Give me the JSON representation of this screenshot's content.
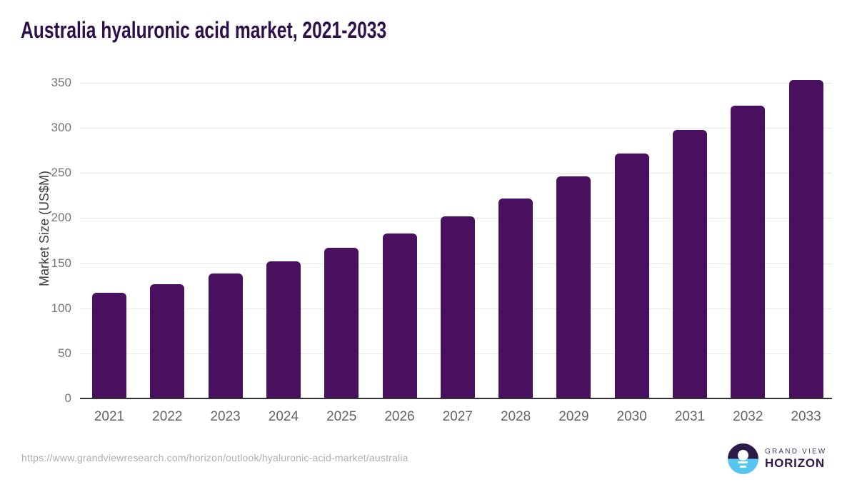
{
  "title": "Australia hyaluronic acid market, 2021-2033",
  "chart_data": {
    "type": "bar",
    "title": "Australia hyaluronic acid market, 2021-2033",
    "categories": [
      "2021",
      "2022",
      "2023",
      "2024",
      "2025",
      "2026",
      "2027",
      "2028",
      "2029",
      "2030",
      "2031",
      "2032",
      "2033"
    ],
    "values": [
      117,
      127,
      139,
      152,
      167,
      183,
      202,
      222,
      246,
      272,
      298,
      325,
      353
    ],
    "xlabel": "",
    "ylabel": "Market Size (US$M)",
    "ylim": [
      0,
      350
    ],
    "yticks": [
      0,
      50,
      100,
      150,
      200,
      250,
      300,
      350
    ],
    "grid": "horizontal",
    "legend": "none",
    "bar_color": "#48105e"
  },
  "colors": {
    "bar": "#48105e",
    "title": "#2d0f4b",
    "axis_line": "#333333",
    "gridline": "#e8e8e8",
    "y_tick_label": "#757575",
    "x_tick_label": "#646464",
    "y_axis_title": "#3f3f3f",
    "source_url": "#aeaeae",
    "logo_purple": "#2b1a4a",
    "logo_blue": "#56c5f0"
  },
  "footer": {
    "source_url": "https://www.grandviewresearch.com/horizon/outlook/hyaluronic-acid-market/australia",
    "logo_top": "GRAND VIEW",
    "logo_bottom": "HORIZON"
  }
}
